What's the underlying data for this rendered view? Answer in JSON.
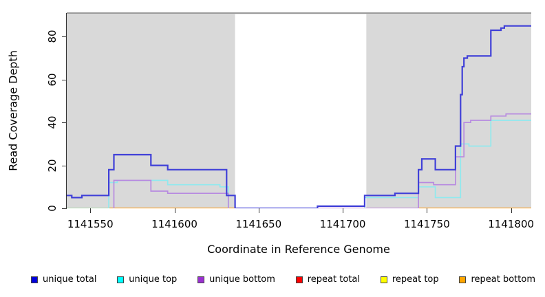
{
  "chart_data": {
    "type": "line",
    "subtype": "step-post",
    "title": "",
    "xlabel": "Coordinate in Reference Genome",
    "ylabel": "Read Coverage Depth",
    "xlim": [
      1141536,
      1141812
    ],
    "ylim": [
      0,
      91
    ],
    "xticks": [
      1141550,
      1141600,
      1141650,
      1141700,
      1141750,
      1141800
    ],
    "yticks": [
      0,
      20,
      40,
      60,
      80
    ],
    "grid": false,
    "plot_background": "#d9d9d9",
    "masked_region": {
      "x1": 1141636,
      "x2": 1141714,
      "color": "#ffffff"
    },
    "series": [
      {
        "name": "unique total",
        "color": "#4040d8",
        "width": 2.2,
        "render": true,
        "segments": [
          [
            [
              1141536,
              6
            ],
            [
              1141539,
              5
            ],
            [
              1141545,
              6
            ],
            [
              1141561,
              18
            ],
            [
              1141564,
              25
            ],
            [
              1141586,
              20
            ],
            [
              1141596,
              18
            ],
            [
              1141631,
              6
            ],
            [
              1141636,
              0
            ],
            [
              1141685,
              1
            ],
            [
              1141713,
              6
            ],
            [
              1141731,
              7
            ],
            [
              1141745,
              18
            ],
            [
              1141747,
              23
            ],
            [
              1141755,
              18
            ],
            [
              1141767,
              29
            ],
            [
              1141770,
              53
            ],
            [
              1141771,
              66
            ],
            [
              1141772,
              70
            ],
            [
              1141774,
              71
            ],
            [
              1141788,
              83
            ],
            [
              1141794,
              84
            ],
            [
              1141796,
              85
            ],
            [
              1141812,
              85
            ]
          ]
        ]
      },
      {
        "name": "unique top",
        "color": "#90e9ee",
        "width": 1.7,
        "render": true,
        "segments": [
          [
            [
              1141561,
              0
            ],
            [
              1141561,
              12
            ],
            [
              1141566,
              13
            ],
            [
              1141596,
              11
            ],
            [
              1141627,
              10
            ],
            [
              1141632,
              0
            ]
          ],
          [
            [
              1141713,
              0
            ],
            [
              1141713,
              5
            ],
            [
              1141745,
              10
            ],
            [
              1141755,
              5
            ],
            [
              1141770,
              30
            ],
            [
              1141775,
              29
            ],
            [
              1141788,
              41
            ],
            [
              1141812,
              41
            ]
          ]
        ]
      },
      {
        "name": "unique bottom",
        "color": "#b78ae0",
        "width": 1.7,
        "render": true,
        "segments": [
          [
            [
              1141564,
              0
            ],
            [
              1141564,
              13
            ],
            [
              1141586,
              8
            ],
            [
              1141596,
              7
            ],
            [
              1141632,
              0
            ]
          ],
          [
            [
              1141636,
              0
            ],
            [
              1141745,
              12
            ],
            [
              1141754,
              11
            ],
            [
              1141767,
              24
            ],
            [
              1141772,
              40
            ],
            [
              1141776,
              41
            ],
            [
              1141788,
              43
            ],
            [
              1141797,
              44
            ],
            [
              1141812,
              44
            ]
          ]
        ]
      },
      {
        "name": "repeat total",
        "color": "#e16074",
        "width": 1.7,
        "render": false,
        "segments": [
          [
            [
              1141536,
              0
            ],
            [
              1141812,
              0
            ]
          ]
        ]
      },
      {
        "name": "repeat top",
        "color": "#ffff00",
        "width": 1.7,
        "render": false,
        "segments": [
          [
            [
              1141536,
              0
            ],
            [
              1141812,
              0
            ]
          ]
        ]
      },
      {
        "name": "repeat bottom",
        "color": "#ff9300",
        "width": 2,
        "render": false,
        "segments": [
          [
            [
              1141536,
              0
            ],
            [
              1141812,
              0
            ]
          ]
        ]
      }
    ],
    "zero_line_segments": [
      {
        "x1": 1141536,
        "x2": 1141561,
        "color": "#a5d6a5",
        "width": 1.7
      },
      {
        "x1": 1141561,
        "x2": 1141636,
        "color": "#ff9300",
        "width": 2
      },
      {
        "x1": 1141636,
        "x2": 1141745,
        "color": "#e16074",
        "width": 1.7
      },
      {
        "x1": 1141745,
        "x2": 1141812,
        "color": "#ff9300",
        "width": 2
      }
    ],
    "legend": [
      {
        "label": "unique total",
        "color": "#0000dc"
      },
      {
        "label": "unique top",
        "color": "#00ffff"
      },
      {
        "label": "unique bottom",
        "color": "#9a30d0"
      },
      {
        "label": "repeat total",
        "color": "#ff0000"
      },
      {
        "label": "repeat top",
        "color": "#ffff00"
      },
      {
        "label": "repeat bottom",
        "color": "#ffa500"
      }
    ],
    "legend_position": "bottom"
  }
}
